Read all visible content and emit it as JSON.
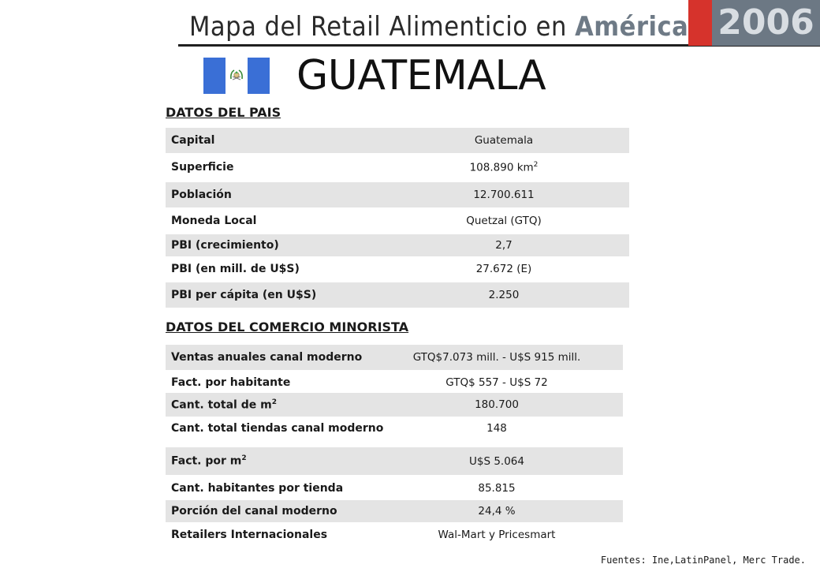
{
  "header": {
    "title_main": "Mapa del Retail Alimenticio en",
    "title_highlight": "América Latina",
    "year": "2006"
  },
  "country": {
    "name": "GUATEMALA"
  },
  "country_data": {
    "section_title": "DATOS DEL PAIS",
    "rows": [
      {
        "label": "Capital",
        "value": "Guatemala"
      },
      {
        "label": "Superficie",
        "value": "108.890 km",
        "value_sup": "2"
      },
      {
        "label": "Población",
        "value": "12.700.611"
      },
      {
        "label": "Moneda Local",
        "value": "Quetzal (GTQ)"
      },
      {
        "label": "PBI (crecimiento)",
        "value": "2,7"
      },
      {
        "label": "PBI (en mill. de U$S)",
        "value": "27.672 (E)"
      },
      {
        "label": "PBI per cápita (en  U$S)",
        "value": "2.250"
      }
    ]
  },
  "retail_data": {
    "section_title": "DATOS DEL COMERCIO MINORISTA",
    "rows": [
      {
        "label": "Ventas anuales canal moderno",
        "value": "GTQ$7.073 mill. - U$S 915 mill."
      },
      {
        "label": "Fact. por habitante",
        "value": "GTQ$ 557 - U$S 72"
      },
      {
        "label": "Cant. total de m",
        "label_sup": "2",
        "value": "180.700"
      },
      {
        "label": "Cant. total tiendas canal moderno",
        "value": "148"
      },
      {
        "label": "Fact. por m",
        "label_sup": "2",
        "value": "U$S 5.064"
      },
      {
        "label": "Cant. habitantes  por tienda",
        "value": "85.815"
      },
      {
        "label": "Porción del canal moderno",
        "value": "24,4 %"
      },
      {
        "label": "Retailers Internacionales",
        "value": "Wal-Mart y Pricesmart"
      }
    ]
  },
  "footer": {
    "sources": "Fuentes: Ine,LatinPanel, Merc Trade."
  },
  "colors": {
    "header_gray": "#6c7884",
    "header_red": "#d6332c",
    "row_shade": "#e4e4e4",
    "flag_blue": "#3a6fd6"
  }
}
